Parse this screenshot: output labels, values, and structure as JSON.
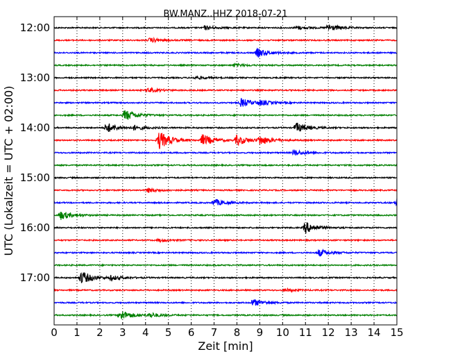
{
  "chart_data": {
    "type": "line",
    "title": "BW.MANZ..HHZ 2018-07-21",
    "xlabel": "Zeit  [min]",
    "ylabel": "UTC (Lokalzeit = UTC + 02:00)",
    "xlim": [
      0,
      15
    ],
    "x_ticks": [
      "0",
      "1",
      "2",
      "3",
      "4",
      "5",
      "6",
      "7",
      "8",
      "9",
      "10",
      "11",
      "12",
      "13",
      "14",
      "15"
    ],
    "y_ticks": [
      "12:00",
      "13:00",
      "14:00",
      "15:00",
      "16:00",
      "17:00"
    ],
    "grid": "vertical dotted",
    "trace_color_cycle": [
      "#000000",
      "#ff0000",
      "#0000ff",
      "#008000"
    ],
    "series": [
      {
        "start": "12:00",
        "color": "#000000",
        "events": [
          {
            "t": 6.6,
            "amp": 2.5
          },
          {
            "t": 10.6,
            "amp": 2.5
          },
          {
            "t": 12.0,
            "amp": 5
          }
        ]
      },
      {
        "start": "12:15",
        "color": "#ff0000",
        "events": [
          {
            "t": 4.2,
            "amp": 3
          }
        ]
      },
      {
        "start": "12:30",
        "color": "#0000ff",
        "events": [
          {
            "t": 8.9,
            "amp": 6
          }
        ]
      },
      {
        "start": "12:45",
        "color": "#008000",
        "events": [
          {
            "t": 7.9,
            "amp": 2
          }
        ]
      },
      {
        "start": "13:00",
        "color": "#000000",
        "events": [
          {
            "t": 6.2,
            "amp": 2
          }
        ]
      },
      {
        "start": "13:15",
        "color": "#ff0000",
        "events": [
          {
            "t": 4.1,
            "amp": 3
          }
        ]
      },
      {
        "start": "13:30",
        "color": "#0000ff",
        "events": [
          {
            "t": 8.2,
            "amp": 6
          },
          {
            "t": 9.0,
            "amp": 3
          }
        ]
      },
      {
        "start": "13:45",
        "color": "#008000",
        "events": [
          {
            "t": 3.1,
            "amp": 8
          }
        ]
      },
      {
        "start": "14:00",
        "color": "#000000",
        "events": [
          {
            "t": 2.3,
            "amp": 7
          },
          {
            "t": 3.5,
            "amp": 3
          },
          {
            "t": 10.6,
            "amp": 7
          }
        ]
      },
      {
        "start": "14:15",
        "color": "#ff0000",
        "events": [
          {
            "t": 4.6,
            "amp": 13
          },
          {
            "t": 6.5,
            "amp": 8
          },
          {
            "t": 8.0,
            "amp": 7
          },
          {
            "t": 9.0,
            "amp": 6
          }
        ]
      },
      {
        "start": "14:30",
        "color": "#0000ff",
        "events": [
          {
            "t": 10.5,
            "amp": 4
          }
        ]
      },
      {
        "start": "14:45",
        "color": "#008000",
        "events": []
      },
      {
        "start": "15:00",
        "color": "#000000",
        "events": []
      },
      {
        "start": "15:15",
        "color": "#ff0000",
        "events": [
          {
            "t": 4.1,
            "amp": 3
          }
        ]
      },
      {
        "start": "15:30",
        "color": "#0000ff",
        "events": [
          {
            "t": 7.0,
            "amp": 5
          },
          {
            "t": 15.0,
            "amp": 5
          }
        ]
      },
      {
        "start": "15:45",
        "color": "#008000",
        "events": [
          {
            "t": 0.3,
            "amp": 6
          }
        ]
      },
      {
        "start": "16:00",
        "color": "#000000",
        "events": [
          {
            "t": 11.0,
            "amp": 8
          }
        ]
      },
      {
        "start": "16:15",
        "color": "#ff0000",
        "events": [
          {
            "t": 4.6,
            "amp": 2
          }
        ]
      },
      {
        "start": "16:30",
        "color": "#0000ff",
        "events": [
          {
            "t": 11.6,
            "amp": 5
          }
        ]
      },
      {
        "start": "16:45",
        "color": "#008000",
        "events": []
      },
      {
        "start": "17:00",
        "color": "#000000",
        "events": [
          {
            "t": 1.2,
            "amp": 9
          },
          {
            "t": 2.5,
            "amp": 3
          }
        ]
      },
      {
        "start": "17:15",
        "color": "#ff0000",
        "events": [
          {
            "t": 10.1,
            "amp": 2
          }
        ]
      },
      {
        "start": "17:30",
        "color": "#0000ff",
        "events": [
          {
            "t": 8.7,
            "amp": 5
          }
        ]
      },
      {
        "start": "17:45",
        "color": "#008000",
        "events": [
          {
            "t": 2.9,
            "amp": 7
          },
          {
            "t": 4.2,
            "amp": 3
          }
        ]
      }
    ]
  }
}
